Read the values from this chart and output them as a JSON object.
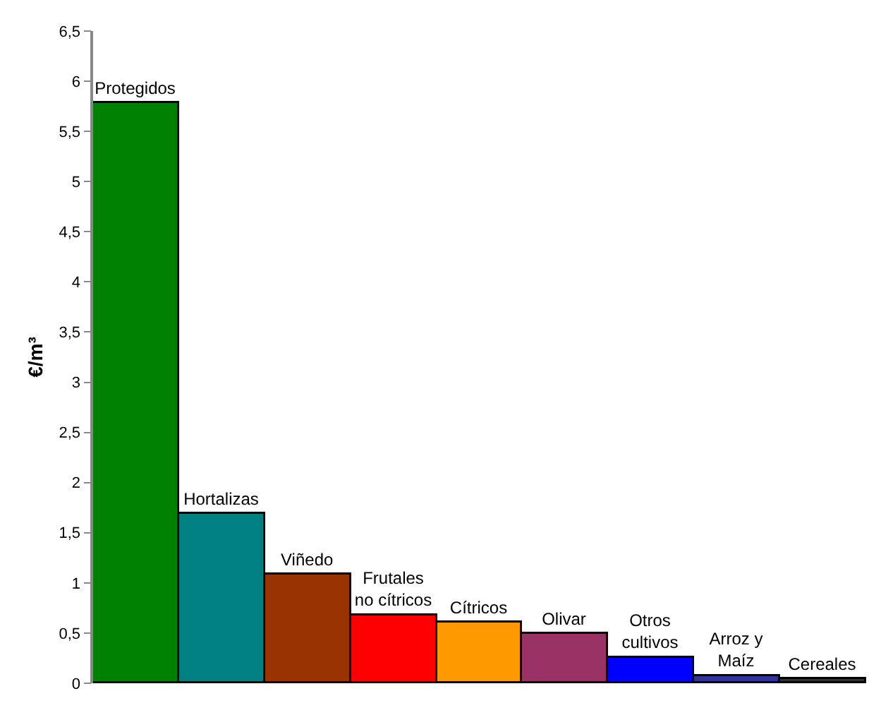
{
  "chart_data": {
    "type": "bar",
    "ylabel": "€/m³",
    "categories": [
      "Protegidos",
      "Hortalizas",
      "Viñedo",
      "Frutales\nno cítricos",
      "Cítricos",
      "Olivar",
      "Otros\ncultivos",
      "Arroz y\nMaíz",
      "Cereales"
    ],
    "values": [
      5.78,
      1.69,
      1.08,
      0.67,
      0.61,
      0.49,
      0.26,
      0.07,
      0.04
    ],
    "colors": [
      "#008000",
      "#008080",
      "#993300",
      "#ff0000",
      "#ff9900",
      "#993366",
      "#0000ff",
      "#333399",
      "#333333"
    ],
    "ylim": [
      0,
      6.5
    ],
    "yticks": [
      0,
      {
        "value": 0.5,
        "label": "0,5"
      },
      1,
      {
        "value": 1.5,
        "label": "1,5"
      },
      2,
      {
        "value": 2.5,
        "label": "2,5"
      },
      3,
      {
        "value": 3.5,
        "label": "3,5"
      },
      4,
      {
        "value": 4.5,
        "label": "4,5"
      },
      5,
      {
        "value": 5.5,
        "label": "5,5"
      },
      6,
      {
        "value": 6.5,
        "label": "6,5"
      }
    ],
    "grid": false,
    "tick_labels": "y"
  }
}
